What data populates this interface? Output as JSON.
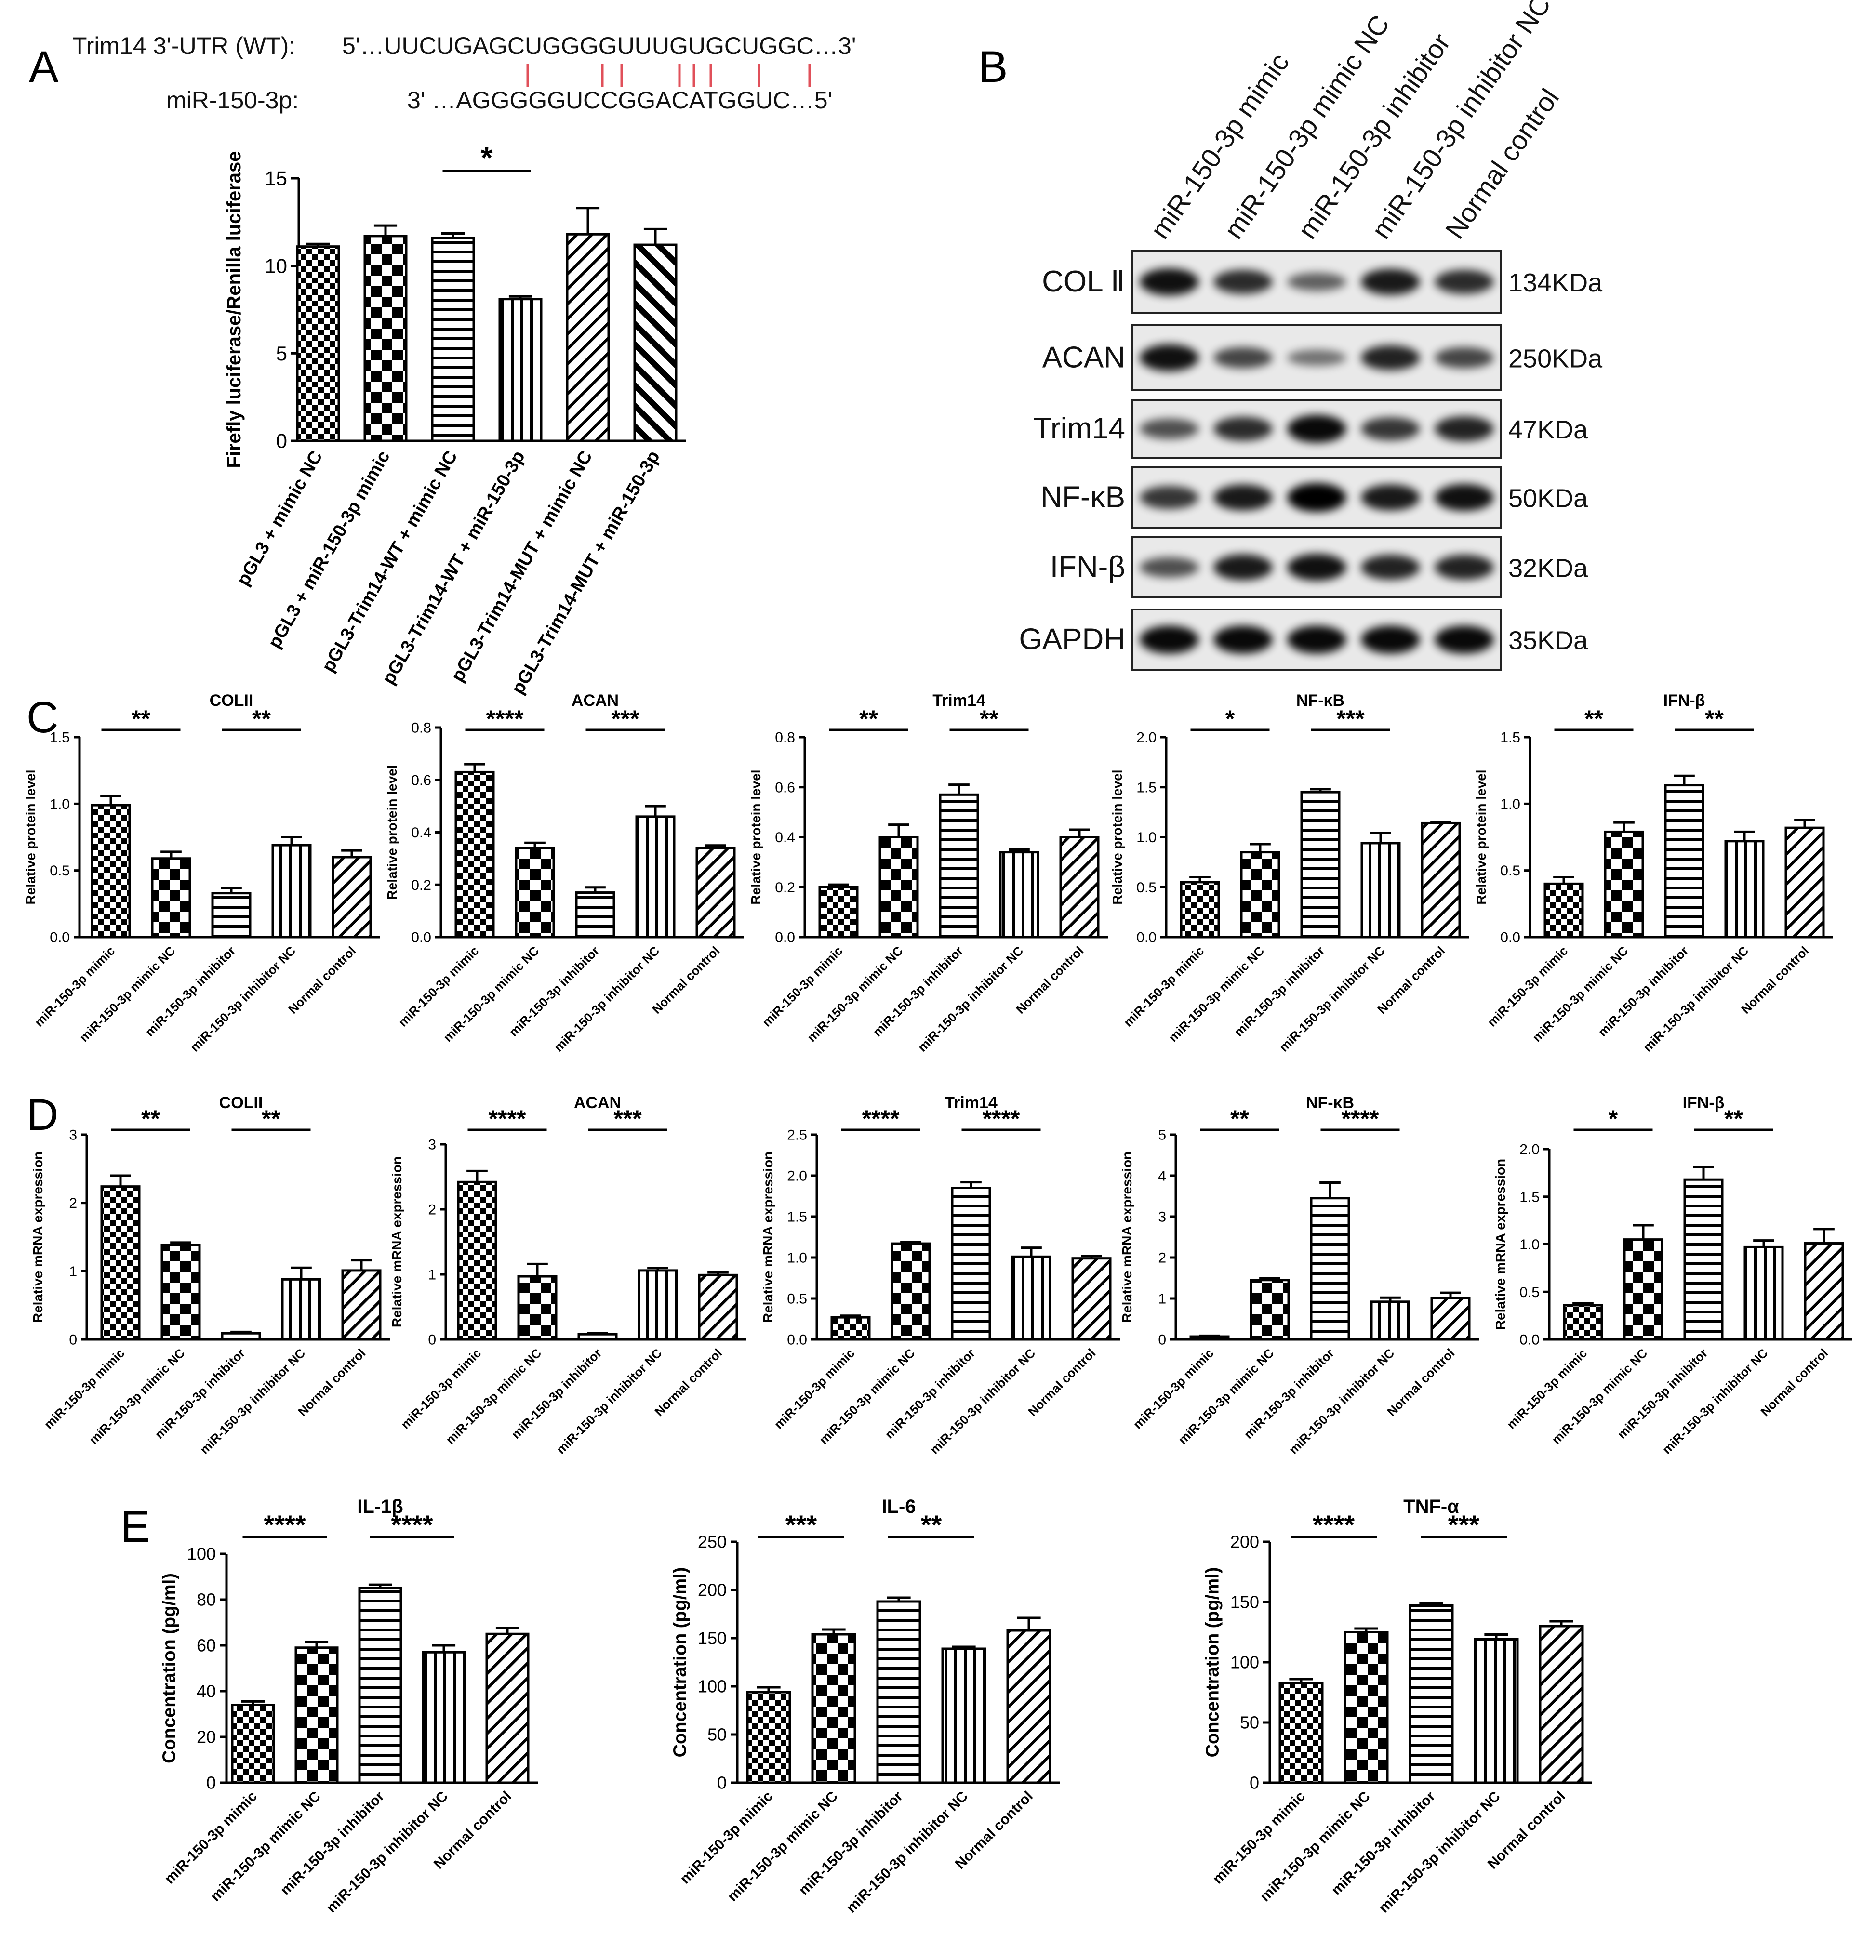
{
  "panel_letters": [
    "A",
    "B",
    "C",
    "D",
    "E"
  ],
  "pattern_legend": {
    "check": "small checker",
    "check_big": "large checker",
    "hlines": "horizontal lines",
    "vlines": "vertical lines",
    "diag": "diagonal lines (forward)",
    "diag_back": "diagonal lines (backward)"
  },
  "sequence": {
    "utr_label": "Trim14 3'-UTR (WT):",
    "utr_seq": "5'…UUCUGAGCUGGGGUUUGUGCUGGC…3'",
    "mir_label": "miR-150-3p:",
    "mir_seq": "3' …AGGGGGUCCGGACATGGUC…5'",
    "pair_color": "#e0505a"
  },
  "blot": {
    "lanes": [
      "miR-150-3p mimic",
      "miR-150-3p mimic NC",
      "miR-150-3p inhibitor",
      "miR-150-3p inhibitor NC",
      "Normal control"
    ],
    "rows": [
      {
        "protein": "COL Ⅱ",
        "size": "134KDa",
        "intensity": [
          0.9,
          0.75,
          0.45,
          0.85,
          0.75
        ]
      },
      {
        "protein": "ACAN",
        "size": "250KDa",
        "intensity": [
          0.9,
          0.6,
          0.35,
          0.8,
          0.6
        ]
      },
      {
        "protein": "Trim14",
        "size": "47KDa",
        "intensity": [
          0.55,
          0.75,
          0.95,
          0.7,
          0.8
        ]
      },
      {
        "protein": "NF-κB",
        "size": "50KDa",
        "intensity": [
          0.7,
          0.85,
          1.0,
          0.85,
          0.9
        ]
      },
      {
        "protein": "IFN-β",
        "size": "32KDa",
        "intensity": [
          0.55,
          0.85,
          0.9,
          0.8,
          0.8
        ]
      },
      {
        "protein": "GAPDH",
        "size": "35KDa",
        "intensity": [
          0.95,
          0.95,
          0.95,
          0.95,
          0.95
        ]
      }
    ]
  },
  "chart_data": [
    {
      "panel": "A",
      "type": "bar",
      "title": "",
      "ylabel": "Firefly luciferase/Renilla luciferase",
      "ylim": [
        0,
        15
      ],
      "yticks": [
        0,
        5,
        10,
        15
      ],
      "categories": [
        "pGL3 + mimic NC",
        "pGL3 + miR-150-3p mimic",
        "pGL3-Trim14-WT + mimic NC",
        "pGL3-Trim14-WT + miR-150-3p",
        "pGL3-Trim14-MUT + mimic NC",
        "pGL3-Trim14-MUT + miR-150-3p"
      ],
      "values": [
        11.1,
        11.7,
        11.6,
        8.1,
        11.8,
        11.2
      ],
      "errors": [
        0.15,
        0.6,
        0.25,
        0.15,
        1.5,
        0.9
      ],
      "patterns": [
        "check",
        "check_big",
        "hlines",
        "vlines",
        "diag",
        "diag_back"
      ],
      "significance": [
        {
          "from": 2,
          "to": 3,
          "label": "*"
        }
      ]
    },
    {
      "panel": "C",
      "type": "bar",
      "title": "COLII",
      "ylabel": "Relative protein level",
      "ylim": [
        0,
        1.5
      ],
      "yticks": [
        "0.0",
        "0.5",
        "1.0",
        "1.5"
      ],
      "categories": [
        "miR-150-3p mimic",
        "miR-150-3p mimic NC",
        "miR-150-3p inhibitor",
        "miR-150-3p inhibitor NC",
        "Normal control"
      ],
      "values": [
        0.99,
        0.59,
        0.33,
        0.69,
        0.6
      ],
      "errors": [
        0.07,
        0.05,
        0.04,
        0.06,
        0.05
      ],
      "patterns": [
        "check",
        "check_big",
        "hlines",
        "vlines",
        "diag"
      ],
      "significance": [
        {
          "from": 0,
          "to": 1,
          "label": "**"
        },
        {
          "from": 2,
          "to": 3,
          "label": "**"
        }
      ]
    },
    {
      "panel": "C",
      "type": "bar",
      "title": "ACAN",
      "ylabel": "Relative protein level",
      "ylim": [
        0,
        0.8
      ],
      "yticks": [
        "0.0",
        "0.2",
        "0.4",
        "0.6",
        "0.8"
      ],
      "categories": [
        "miR-150-3p mimic",
        "miR-150-3p mimic NC",
        "miR-150-3p inhibitor",
        "miR-150-3p inhibitor NC",
        "Normal control"
      ],
      "values": [
        0.63,
        0.34,
        0.17,
        0.46,
        0.34
      ],
      "errors": [
        0.03,
        0.02,
        0.02,
        0.04,
        0.01
      ],
      "patterns": [
        "check",
        "check_big",
        "hlines",
        "vlines",
        "diag"
      ],
      "significance": [
        {
          "from": 0,
          "to": 1,
          "label": "****"
        },
        {
          "from": 2,
          "to": 3,
          "label": "***"
        }
      ]
    },
    {
      "panel": "C",
      "type": "bar",
      "title": "Trim14",
      "ylabel": "Relative protein level",
      "ylim": [
        0,
        0.8
      ],
      "yticks": [
        "0.0",
        "0.2",
        "0.4",
        "0.6",
        "0.8"
      ],
      "categories": [
        "miR-150-3p mimic",
        "miR-150-3p mimic NC",
        "miR-150-3p inhibitor",
        "miR-150-3p inhibitor NC",
        "Normal control"
      ],
      "values": [
        0.2,
        0.4,
        0.57,
        0.34,
        0.4
      ],
      "errors": [
        0.01,
        0.05,
        0.04,
        0.01,
        0.03
      ],
      "patterns": [
        "check",
        "check_big",
        "hlines",
        "vlines",
        "diag"
      ],
      "significance": [
        {
          "from": 0,
          "to": 1,
          "label": "**"
        },
        {
          "from": 2,
          "to": 3,
          "label": "**"
        }
      ]
    },
    {
      "panel": "C",
      "type": "bar",
      "title": "NF-κB",
      "ylabel": "Relative protein level",
      "ylim": [
        0,
        2.0
      ],
      "yticks": [
        "0.0",
        "0.5",
        "1.0",
        "1.5",
        "2.0"
      ],
      "categories": [
        "miR-150-3p mimic",
        "miR-150-3p mimic NC",
        "miR-150-3p inhibitor",
        "miR-150-3p inhibitor NC",
        "Normal control"
      ],
      "values": [
        0.55,
        0.85,
        1.45,
        0.94,
        1.14
      ],
      "errors": [
        0.05,
        0.08,
        0.03,
        0.1,
        0.01
      ],
      "patterns": [
        "check",
        "check_big",
        "hlines",
        "vlines",
        "diag"
      ],
      "significance": [
        {
          "from": 0,
          "to": 1,
          "label": "*"
        },
        {
          "from": 2,
          "to": 3,
          "label": "***"
        }
      ]
    },
    {
      "panel": "C",
      "type": "bar",
      "title": "IFN-β",
      "ylabel": "Relative protein level",
      "ylim": [
        0,
        1.5
      ],
      "yticks": [
        "0.0",
        "0.5",
        "1.0",
        "1.5"
      ],
      "categories": [
        "miR-150-3p mimic",
        "miR-150-3p mimic NC",
        "miR-150-3p inhibitor",
        "miR-150-3p inhibitor NC",
        "Normal control"
      ],
      "values": [
        0.4,
        0.79,
        1.14,
        0.72,
        0.82
      ],
      "errors": [
        0.05,
        0.07,
        0.07,
        0.07,
        0.06
      ],
      "patterns": [
        "check",
        "check_big",
        "hlines",
        "vlines",
        "diag"
      ],
      "significance": [
        {
          "from": 0,
          "to": 1,
          "label": "**"
        },
        {
          "from": 2,
          "to": 3,
          "label": "**"
        }
      ]
    },
    {
      "panel": "D",
      "type": "bar",
      "title": "COLII",
      "ylabel": "Relative mRNA expression",
      "ylim": [
        0,
        3
      ],
      "yticks": [
        "0",
        "1",
        "2",
        "3"
      ],
      "categories": [
        "miR-150-3p mimic",
        "miR-150-3p mimic NC",
        "miR-150-3p inhibitor",
        "miR-150-3p inhibitor NC",
        "Normal control"
      ],
      "values": [
        2.24,
        1.38,
        0.09,
        0.88,
        1.01
      ],
      "errors": [
        0.16,
        0.04,
        0.02,
        0.17,
        0.15
      ],
      "patterns": [
        "check",
        "check_big",
        "hlines",
        "vlines",
        "diag"
      ],
      "significance": [
        {
          "from": 0,
          "to": 1,
          "label": "**"
        },
        {
          "from": 2,
          "to": 3,
          "label": "**"
        }
      ]
    },
    {
      "panel": "D",
      "type": "bar",
      "title": "ACAN",
      "ylabel": "Relative mRNA expression",
      "ylim": [
        0,
        3
      ],
      "yticks": [
        "0",
        "1",
        "2",
        "3"
      ],
      "categories": [
        "miR-150-3p mimic",
        "miR-150-3p mimic NC",
        "miR-150-3p inhibitor",
        "miR-150-3p inhibitor NC",
        "Normal control"
      ],
      "values": [
        2.42,
        0.97,
        0.08,
        1.06,
        0.99
      ],
      "errors": [
        0.17,
        0.19,
        0.02,
        0.04,
        0.04
      ],
      "patterns": [
        "check",
        "check_big",
        "hlines",
        "vlines",
        "diag"
      ],
      "significance": [
        {
          "from": 0,
          "to": 1,
          "label": "****"
        },
        {
          "from": 2,
          "to": 3,
          "label": "***"
        }
      ]
    },
    {
      "panel": "D",
      "type": "bar",
      "title": "Trim14",
      "ylabel": "Relative mRNA expression",
      "ylim": [
        0,
        2.5
      ],
      "yticks": [
        "0.0",
        "0.5",
        "1.0",
        "1.5",
        "2.0",
        "2.5"
      ],
      "categories": [
        "miR-150-3p mimic",
        "miR-150-3p mimic NC",
        "miR-150-3p inhibitor",
        "miR-150-3p inhibitor NC",
        "Normal control"
      ],
      "values": [
        0.27,
        1.17,
        1.85,
        1.01,
        0.99
      ],
      "errors": [
        0.02,
        0.02,
        0.07,
        0.11,
        0.03
      ],
      "patterns": [
        "check",
        "check_big",
        "hlines",
        "vlines",
        "diag"
      ],
      "significance": [
        {
          "from": 0,
          "to": 1,
          "label": "****"
        },
        {
          "from": 2,
          "to": 3,
          "label": "****"
        }
      ]
    },
    {
      "panel": "D",
      "type": "bar",
      "title": "NF-κB",
      "ylabel": "Relative mRNA expression",
      "ylim": [
        0,
        5
      ],
      "yticks": [
        "0",
        "1",
        "2",
        "3",
        "4",
        "5"
      ],
      "categories": [
        "miR-150-3p mimic",
        "miR-150-3p mimic NC",
        "miR-150-3p inhibitor",
        "miR-150-3p inhibitor NC",
        "Normal control"
      ],
      "values": [
        0.07,
        1.45,
        3.45,
        0.92,
        1.01
      ],
      "errors": [
        0.02,
        0.05,
        0.38,
        0.1,
        0.13
      ],
      "patterns": [
        "check",
        "check_big",
        "hlines",
        "vlines",
        "diag"
      ],
      "significance": [
        {
          "from": 0,
          "to": 1,
          "label": "**"
        },
        {
          "from": 2,
          "to": 3,
          "label": "****"
        }
      ]
    },
    {
      "panel": "D",
      "type": "bar",
      "title": "IFN-β",
      "ylabel": "Relative mRNA expression",
      "ylim": [
        0,
        2.0
      ],
      "yticks": [
        "0.0",
        "0.5",
        "1.0",
        "1.5",
        "2.0"
      ],
      "categories": [
        "miR-150-3p mimic",
        "miR-150-3p mimic NC",
        "miR-150-3p inhibitor",
        "miR-150-3p inhibitor NC",
        "Normal control"
      ],
      "values": [
        0.36,
        1.05,
        1.68,
        0.97,
        1.01
      ],
      "errors": [
        0.02,
        0.15,
        0.13,
        0.07,
        0.15
      ],
      "patterns": [
        "check",
        "check_big",
        "hlines",
        "vlines",
        "diag"
      ],
      "significance": [
        {
          "from": 0,
          "to": 1,
          "label": "*"
        },
        {
          "from": 2,
          "to": 3,
          "label": "**"
        }
      ]
    },
    {
      "panel": "E",
      "type": "bar",
      "title": "IL-1β",
      "ylabel": "Concentration (pg/ml)",
      "ylim": [
        0,
        100
      ],
      "yticks": [
        "0",
        "20",
        "40",
        "60",
        "80",
        "100"
      ],
      "categories": [
        "miR-150-3p mimic",
        "miR-150-3p mimic NC",
        "miR-150-3p inhibitor",
        "miR-150-3p inhibitor NC",
        "Normal control"
      ],
      "values": [
        34,
        59,
        85,
        57,
        65
      ],
      "errors": [
        1.5,
        2.5,
        1.5,
        3,
        2.5
      ],
      "patterns": [
        "check",
        "check_big",
        "hlines",
        "vlines",
        "diag"
      ],
      "significance": [
        {
          "from": 0,
          "to": 1,
          "label": "****"
        },
        {
          "from": 2,
          "to": 3,
          "label": "****"
        }
      ]
    },
    {
      "panel": "E",
      "type": "bar",
      "title": "IL-6",
      "ylabel": "Concentration (pg/ml)",
      "ylim": [
        0,
        250
      ],
      "yticks": [
        "0",
        "50",
        "100",
        "150",
        "200",
        "250"
      ],
      "categories": [
        "miR-150-3p mimic",
        "miR-150-3p mimic NC",
        "miR-150-3p inhibitor",
        "miR-150-3p inhibitor NC",
        "Normal control"
      ],
      "values": [
        94,
        154,
        188,
        139,
        158
      ],
      "errors": [
        5,
        5,
        4,
        2,
        13
      ],
      "patterns": [
        "check",
        "check_big",
        "hlines",
        "vlines",
        "diag"
      ],
      "significance": [
        {
          "from": 0,
          "to": 1,
          "label": "***"
        },
        {
          "from": 2,
          "to": 3,
          "label": "**"
        }
      ]
    },
    {
      "panel": "E",
      "type": "bar",
      "title": "TNF-α",
      "ylabel": "Concentration (pg/ml)",
      "ylim": [
        0,
        200
      ],
      "yticks": [
        "0",
        "50",
        "100",
        "150",
        "200"
      ],
      "categories": [
        "miR-150-3p mimic",
        "miR-150-3p mimic NC",
        "miR-150-3p inhibitor",
        "miR-150-3p inhibitor NC",
        "Normal control"
      ],
      "values": [
        83,
        125,
        147,
        119,
        130
      ],
      "errors": [
        3,
        3,
        2,
        4,
        4
      ],
      "patterns": [
        "check",
        "check_big",
        "hlines",
        "vlines",
        "diag"
      ],
      "significance": [
        {
          "from": 0,
          "to": 1,
          "label": "****"
        },
        {
          "from": 2,
          "to": 3,
          "label": "***"
        }
      ]
    }
  ]
}
